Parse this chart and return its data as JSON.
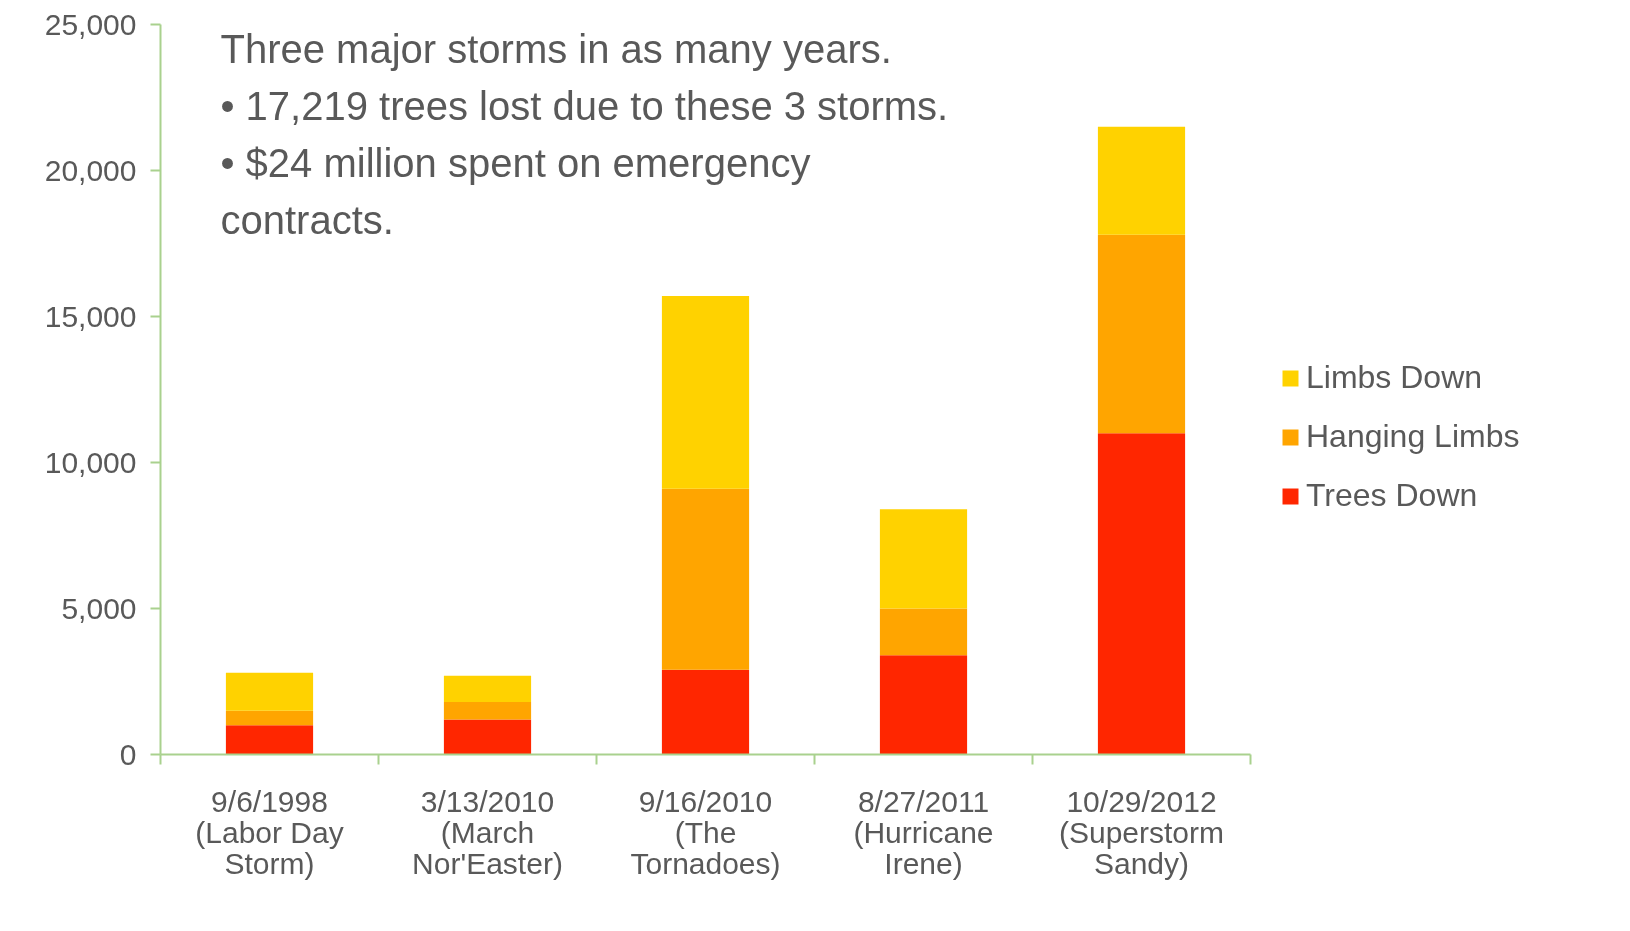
{
  "chart_data": {
    "type": "bar",
    "stacked": true,
    "annotations": [
      "Three major storms in as many years.",
      "•  17,219 trees lost due to these 3 storms.",
      "•  $24 million spent on emergency contracts."
    ],
    "categories": [
      "9/6/1998\n(Labor Day\nStorm)",
      "3/13/2010\n(March\nNor'Easter)",
      "9/16/2010\n(The\nTornadoes)",
      "8/27/2011\n(Hurricane\nIrene)",
      "10/29/2012\n(Superstorm\nSandy)"
    ],
    "series": [
      {
        "name": "Trees Down",
        "color": "#ff2600",
        "values": [
          1000,
          1200,
          2900,
          3400,
          11000
        ]
      },
      {
        "name": "Hanging Limbs",
        "color": "#ffa500",
        "values": [
          500,
          600,
          6200,
          1600,
          6800
        ]
      },
      {
        "name": "Limbs Down",
        "color": "#ffd200",
        "values": [
          1300,
          900,
          6600,
          3400,
          3700
        ]
      }
    ],
    "ylim": [
      0,
      25000
    ],
    "yticks": [
      0,
      {
        "value": 5000,
        "label": "5,000"
      },
      {
        "value": 10000,
        "label": "10,000"
      },
      {
        "value": 15000,
        "label": "15,000"
      },
      {
        "value": 20000,
        "label": "20,000"
      },
      {
        "value": 25000,
        "label": "25,000"
      }
    ],
    "grid": false,
    "legend": "right"
  }
}
